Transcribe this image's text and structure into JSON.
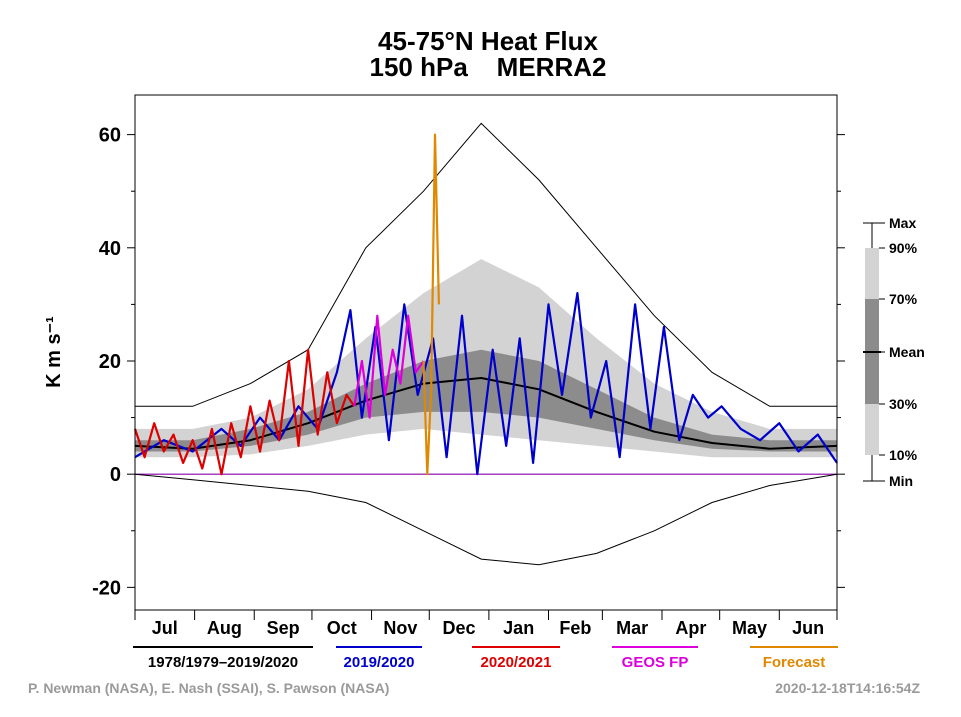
{
  "chart_data": {
    "type": "line",
    "title_lines": [
      "45-75°N Heat Flux",
      "150 hPa    MERRA2"
    ],
    "ylabel": "K m s⁻¹",
    "ylim": [
      -24,
      67
    ],
    "yticks": [
      -20,
      0,
      20,
      40,
      60
    ],
    "months": [
      "Jul",
      "Aug",
      "Sep",
      "Oct",
      "Nov",
      "Dec",
      "Jan",
      "Feb",
      "Mar",
      "Apr",
      "May",
      "Jun"
    ],
    "zero_line": 0,
    "colors": {
      "climatology": "#000000",
      "season_2019_2020": "#0000cc",
      "season_2020_2021": "#dd0000",
      "geos_fp": "#dd00dd",
      "forecast": "#e08800",
      "band_10_90": "#d3d3d3",
      "band_30_70": "#8c8c8c",
      "zero_line": "#8800aa"
    },
    "bands": {
      "day": [
        0,
        30,
        60,
        90,
        120,
        150,
        180,
        210,
        240,
        270,
        300,
        330,
        365
      ],
      "min": [
        0,
        -1,
        -2,
        -3,
        -5,
        -10,
        -15,
        -16,
        -14,
        -10,
        -5,
        -2,
        0
      ],
      "p10": [
        3,
        3,
        3.5,
        5,
        7,
        8,
        7,
        6,
        5,
        4,
        3,
        3,
        3
      ],
      "p30": [
        4,
        4,
        5,
        7,
        10,
        11,
        11,
        10,
        8,
        6,
        4.5,
        4,
        4
      ],
      "mean": [
        5,
        4.5,
        6,
        9,
        13,
        16,
        17,
        15,
        11,
        7.5,
        5.5,
        4.5,
        5
      ],
      "p70": [
        6,
        6,
        8,
        11,
        16,
        20,
        22,
        20,
        15,
        10,
        7,
        6,
        6
      ],
      "p90": [
        8,
        8,
        10,
        15,
        24,
        32,
        38,
        33,
        24,
        16,
        11,
        8,
        8
      ],
      "max": [
        12,
        12,
        16,
        22,
        40,
        50,
        62,
        52,
        40,
        28,
        18,
        12,
        12
      ]
    },
    "series": [
      {
        "name": "1978/1979–2019/2020",
        "key": "climatology",
        "x": [
          0,
          30,
          60,
          90,
          120,
          150,
          180,
          210,
          240,
          270,
          300,
          330,
          365
        ],
        "values": [
          5,
          4.5,
          6,
          9,
          13,
          16,
          17,
          15,
          11,
          7.5,
          5.5,
          4.5,
          5
        ]
      },
      {
        "name": "2019/2020",
        "key": "season_2019_2020",
        "x": [
          0,
          15,
          30,
          45,
          55,
          65,
          75,
          85,
          95,
          105,
          112,
          118,
          125,
          132,
          140,
          147,
          155,
          162,
          170,
          178,
          186,
          193,
          200,
          207,
          215,
          222,
          230,
          237,
          245,
          252,
          260,
          268,
          275,
          283,
          290,
          298,
          305,
          315,
          325,
          335,
          345,
          355,
          365
        ],
        "values": [
          3,
          6,
          4,
          8,
          5,
          10,
          6,
          12,
          8,
          18,
          29,
          10,
          26,
          6,
          30,
          14,
          24,
          3,
          28,
          0,
          22,
          5,
          24,
          2,
          30,
          14,
          32,
          10,
          20,
          3,
          30,
          8,
          26,
          6,
          14,
          10,
          12,
          8,
          6,
          9,
          4,
          7,
          2
        ]
      },
      {
        "name": "2020/2021",
        "key": "season_2020_2021",
        "x": [
          0,
          5,
          10,
          15,
          20,
          25,
          30,
          35,
          40,
          45,
          50,
          55,
          60,
          65,
          70,
          75,
          80,
          85,
          90,
          95,
          100,
          105,
          110,
          114
        ],
        "values": [
          8,
          3,
          9,
          4,
          7,
          2,
          6,
          1,
          8,
          0,
          9,
          3,
          12,
          4,
          13,
          6,
          20,
          5,
          22,
          7,
          18,
          9,
          14,
          12
        ]
      },
      {
        "name": "GEOS FP",
        "key": "geos_fp",
        "x": [
          114,
          118,
          122,
          126,
          130,
          134,
          138,
          142,
          146,
          150
        ],
        "values": [
          12,
          20,
          10,
          28,
          14,
          22,
          16,
          28,
          18,
          20
        ]
      },
      {
        "name": "Forecast",
        "key": "forecast",
        "x": [
          150,
          152,
          154,
          156,
          158
        ],
        "values": [
          20,
          0,
          15,
          60,
          30
        ]
      }
    ],
    "key_labels": [
      "Max",
      "90%",
      "70%",
      "Mean",
      "30%",
      "10%",
      "Min"
    ]
  },
  "credit_left": "P. Newman (NASA), E. Nash (SSAI), S. Pawson (NASA)",
  "credit_right": "2020-12-18T14:16:54Z"
}
